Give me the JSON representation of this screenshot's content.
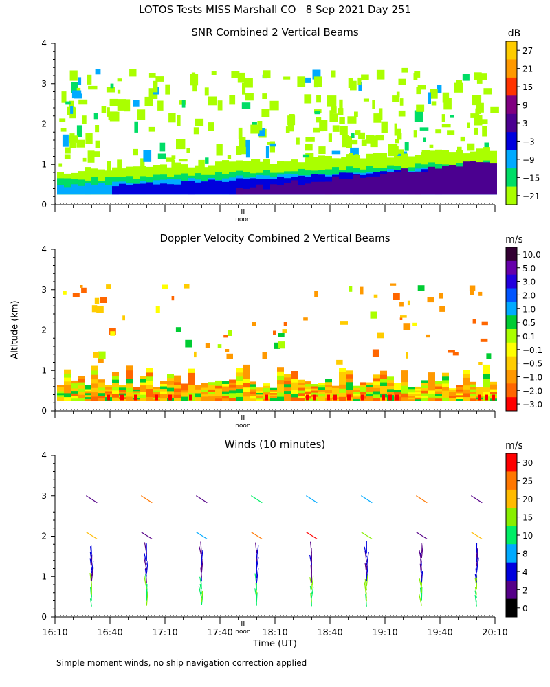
{
  "figure": {
    "title": "LOTOS Tests MISS Marshall CO   8 Sep 2021 Day 251",
    "y_axis_title": "Altitude (km)",
    "footnote": "Simple moment winds, no ship navigation correction applied"
  },
  "chart_data": [
    {
      "type": "heatmap",
      "title": "SNR Combined 2 Vertical Beams",
      "ylim": [
        0,
        4
      ],
      "y_ticks": [
        "0",
        "1",
        "2",
        "3",
        "4"
      ],
      "x_marker": {
        "label": "noon",
        "x": 17.875
      },
      "colorbar": {
        "unit": "dB",
        "labels": [
          "27",
          "21",
          "15",
          "9",
          "3",
          "−3",
          "−9",
          "−15",
          "−21"
        ],
        "colors": [
          "#ffcc00",
          "#ff9900",
          "#ff3300",
          "#800080",
          "#4b0090",
          "#0000dd",
          "#00aaff",
          "#00dd66",
          "#aaff00"
        ],
        "levels": [
          27,
          21,
          15,
          9,
          3,
          -3,
          -9,
          -15,
          -21
        ]
      },
      "bands": [
        {
          "from_km": 0.25,
          "to_km": 0.45,
          "color": "#00aaff"
        },
        {
          "from_km": 0.45,
          "to_km": 0.7,
          "color": "#00dd66"
        },
        {
          "from_km": 0.7,
          "to_km": 1.0,
          "color": "#aaff00"
        },
        {
          "from_km": 2.8,
          "to_km": 3.3,
          "color": "#aaff00"
        }
      ]
    },
    {
      "type": "heatmap",
      "title": "Doppler Velocity Combined 2 Vertical Beams",
      "ylim": [
        0,
        4
      ],
      "y_ticks": [
        "0",
        "1",
        "2",
        "3",
        "4"
      ],
      "x_marker": {
        "label": "noon",
        "x": 17.875
      },
      "colorbar": {
        "unit": "m/s",
        "labels": [
          "10.0",
          "5.0",
          "3.0",
          "2.0",
          "1.0",
          "0.5",
          "0.1",
          "−0.1",
          "−0.5",
          "−1.0",
          "−2.0",
          "−3.0"
        ],
        "colors": [
          "#330033",
          "#6600aa",
          "#2200dd",
          "#0055ff",
          "#00aaff",
          "#00cc33",
          "#aaff00",
          "#ffff00",
          "#ffcc00",
          "#ff9900",
          "#ff6600",
          "#ff0000"
        ],
        "levels": [
          10.0,
          5.0,
          3.0,
          2.0,
          1.0,
          0.5,
          0.1,
          -0.1,
          -0.5,
          -1.0,
          -2.0,
          -3.0
        ]
      }
    },
    {
      "type": "scatter",
      "title": "Winds (10 minutes)",
      "xlabel": "Time (UT)",
      "ylabel": "Altitude (km)",
      "ylim": [
        0,
        4
      ],
      "y_ticks": [
        "0",
        "1",
        "2",
        "3",
        "4"
      ],
      "x_ticks": [
        "16:10",
        "16:40",
        "17:10",
        "17:40",
        "18:10",
        "18:40",
        "19:10",
        "19:40",
        "20:10"
      ],
      "xlim_hours": [
        16.1667,
        20.1667
      ],
      "x_marker": {
        "label": "noon",
        "x": 17.875
      },
      "colorbar": {
        "unit": "m/s",
        "labels": [
          "30",
          "25",
          "20",
          "15",
          "10",
          "8",
          "4",
          "2",
          "0"
        ],
        "colors": [
          "#ff0000",
          "#ff7700",
          "#ffbb00",
          "#88ee00",
          "#00ee66",
          "#00aaff",
          "#0000dd",
          "#550088",
          "#000000"
        ],
        "levels": [
          30,
          25,
          20,
          15,
          10,
          8,
          4,
          2,
          0
        ]
      },
      "profile_times": [
        "16:30",
        "17:00",
        "17:30",
        "18:00",
        "18:30",
        "19:00",
        "19:30",
        "20:00"
      ]
    }
  ]
}
